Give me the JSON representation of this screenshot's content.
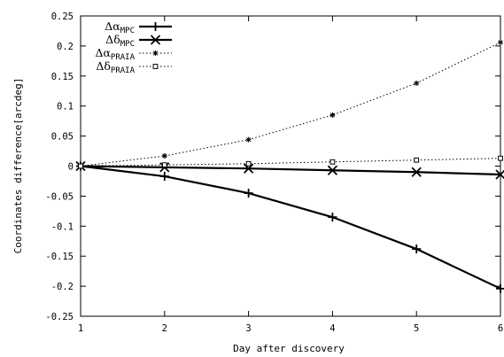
{
  "chart_data": {
    "type": "line",
    "xlabel": "Day after discovery",
    "ylabel": "Coordinates difference[arcdeg]",
    "xlim": [
      1,
      6
    ],
    "ylim": [
      -0.25,
      0.25
    ],
    "x_ticks": [
      "1",
      "2",
      "3",
      "4",
      "5",
      "6"
    ],
    "y_ticks": [
      "0.25",
      "0.2",
      "0.15",
      "0.1",
      "0.05",
      "0",
      "-0.05",
      "-0.1",
      "-0.15",
      "-0.2",
      "-0.25"
    ],
    "x": [
      1,
      2,
      3,
      4,
      5,
      6
    ],
    "legend_position": "top-left",
    "series": [
      {
        "name": "Δα",
        "name_sub": "MPC",
        "values": [
          0,
          -0.017,
          -0.045,
          -0.085,
          -0.138,
          -0.204
        ],
        "style": "solid",
        "marker": "plus",
        "color": "#000000"
      },
      {
        "name": "Δδ",
        "name_sub": "MPC",
        "values": [
          0,
          -0.002,
          -0.004,
          -0.007,
          -0.01,
          -0.014
        ],
        "style": "solid",
        "marker": "cross",
        "color": "#000000"
      },
      {
        "name": "Δα",
        "name_sub": "PRAIA",
        "values": [
          0,
          0.017,
          0.044,
          0.085,
          0.138,
          0.206
        ],
        "style": "dotted",
        "marker": "star",
        "color": "#000000"
      },
      {
        "name": "Δδ",
        "name_sub": "PRAIA",
        "values": [
          0,
          0.002,
          0.004,
          0.007,
          0.01,
          0.013
        ],
        "style": "dotted",
        "marker": "square",
        "color": "#000000"
      }
    ]
  }
}
